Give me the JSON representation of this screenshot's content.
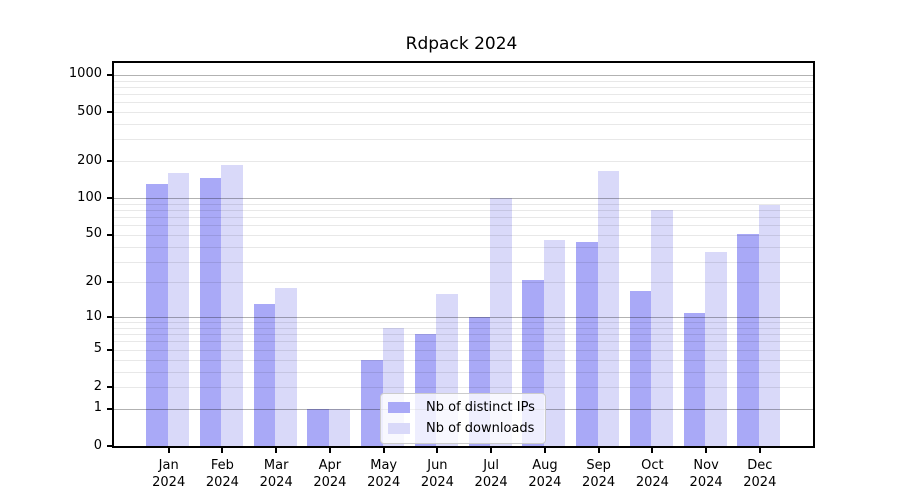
{
  "title": "Rdpack 2024",
  "legend": {
    "items": [
      {
        "label": "Nb of distinct IPs",
        "color": "#a9a9f7"
      },
      {
        "label": "Nb of downloads",
        "color": "#d9d9f9"
      }
    ]
  },
  "chart_data": {
    "type": "bar",
    "title": "Rdpack 2024",
    "categories": [
      "Jan 2024",
      "Feb 2024",
      "Mar 2024",
      "Apr 2024",
      "May 2024",
      "Jun 2024",
      "Jul 2024",
      "Aug 2024",
      "Sep 2024",
      "Oct 2024",
      "Nov 2024",
      "Dec 2024"
    ],
    "series": [
      {
        "name": "Nb of distinct IPs",
        "color": "#a9a9f7",
        "values": [
          130,
          147,
          13,
          1,
          4,
          7,
          10,
          21,
          44,
          17,
          11,
          51
        ]
      },
      {
        "name": "Nb of downloads",
        "color": "#d9d9f9",
        "values": [
          160,
          187,
          18,
          1,
          8,
          16,
          100,
          45,
          166,
          80,
          36,
          87
        ]
      }
    ],
    "xlabel": "",
    "ylabel": "",
    "yscale": "log1p",
    "ylim": [
      0,
      1100
    ],
    "y_ticks": [
      0,
      1,
      2,
      5,
      10,
      20,
      50,
      100,
      200,
      500,
      1000
    ],
    "y_major_gridlines": [
      1,
      10,
      100,
      1000
    ],
    "y_minor_gridlines": [
      2,
      3,
      4,
      5,
      6,
      7,
      8,
      9,
      20,
      30,
      40,
      50,
      60,
      70,
      80,
      90,
      200,
      300,
      400,
      500,
      600,
      700,
      800,
      900
    ],
    "grid": "horizontal, drawn over bars",
    "legend_position": "lower center"
  }
}
